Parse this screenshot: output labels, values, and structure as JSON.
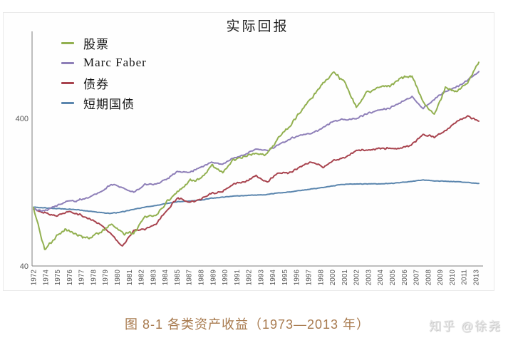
{
  "figure": {
    "title": "实际回报",
    "caption": "图 8-1 各类资产收益（1973—2013 年）",
    "watermark": "知乎 @徐尧"
  },
  "legend": {
    "items": [
      {
        "label": "股票",
        "color": "#92B050"
      },
      {
        "label": "Marc Faber",
        "color": "#8E7FB8"
      },
      {
        "label": "债券",
        "color": "#A8434E"
      },
      {
        "label": "短期国债",
        "color": "#5B86AE"
      }
    ]
  },
  "chart_data": {
    "type": "line",
    "title": "实际回报",
    "xlabel": "",
    "ylabel": "",
    "y_scale": "log",
    "grid": false,
    "legend_position": "top-left",
    "ylim": [
      40,
      1100
    ],
    "y_ticks": [
      {
        "value": 400,
        "label": "400"
      },
      {
        "value": 40,
        "label": "40"
      }
    ],
    "x_tick_labels": [
      "1972",
      "1974",
      "1975",
      "1976",
      "1977",
      "1978",
      "1979",
      "1980",
      "1981",
      "1982",
      "1983",
      "1984",
      "1985",
      "1987",
      "1988",
      "1989",
      "1990",
      "1991",
      "1992",
      "1993",
      "1994",
      "1995",
      "1996",
      "1997",
      "1998",
      "2000",
      "2001",
      "2002",
      "2003",
      "2004",
      "2005",
      "2006",
      "2007",
      "2008",
      "2009",
      "2010",
      "2011",
      "2013"
    ],
    "years": [
      1973,
      1974,
      1975,
      1976,
      1977,
      1978,
      1979,
      1980,
      1981,
      1982,
      1983,
      1984,
      1985,
      1986,
      1987,
      1988,
      1989,
      1990,
      1991,
      1992,
      1993,
      1994,
      1995,
      1996,
      1997,
      1998,
      1999,
      2000,
      2001,
      2002,
      2003,
      2004,
      2005,
      2006,
      2007,
      2008,
      2009,
      2010,
      2011,
      2012,
      2013
    ],
    "series": [
      {
        "name": "股票",
        "slug": "stocks",
        "color": "#92B050",
        "values": [
          100,
          52,
          63,
          71,
          64,
          62,
          67,
          77,
          67,
          66,
          86,
          88,
          110,
          128,
          150,
          155,
          192,
          172,
          212,
          222,
          232,
          228,
          298,
          352,
          448,
          552,
          690,
          820,
          690,
          475,
          600,
          650,
          670,
          745,
          780,
          520,
          420,
          640,
          610,
          700,
          960
        ]
      },
      {
        "name": "Marc Faber",
        "slug": "marc-faber",
        "color": "#8E7FB8",
        "values": [
          97,
          94,
          102,
          110,
          111,
          117,
          127,
          142,
          136,
          126,
          142,
          143,
          156,
          176,
          172,
          186,
          202,
          196,
          216,
          228,
          248,
          242,
          265,
          288,
          310,
          318,
          345,
          385,
          392,
          398,
          432,
          452,
          472,
          512,
          560,
          465,
          540,
          610,
          655,
          725,
          830
        ]
      },
      {
        "name": "债券",
        "slug": "bonds",
        "color": "#A8434E",
        "values": [
          97,
          92,
          87,
          93,
          90,
          84,
          76,
          66,
          54,
          70,
          71,
          77,
          96,
          116,
          108,
          113,
          124,
          128,
          144,
          148,
          164,
          147,
          172,
          171,
          188,
          205,
          186,
          208,
          218,
          242,
          244,
          250,
          252,
          250,
          266,
          310,
          298,
          330,
          375,
          415,
          383
        ]
      },
      {
        "name": "短期国债",
        "slug": "tbills",
        "color": "#5B86AE",
        "values": [
          100,
          99,
          98,
          97,
          96,
          94,
          92,
          91,
          93,
          97,
          100,
          103,
          106,
          109,
          110,
          112,
          115,
          117,
          119,
          120,
          121,
          122,
          125,
          127,
          130,
          133,
          136,
          140,
          143,
          144,
          144,
          144,
          145,
          147,
          150,
          153,
          151,
          150,
          149,
          147,
          145
        ]
      }
    ]
  }
}
